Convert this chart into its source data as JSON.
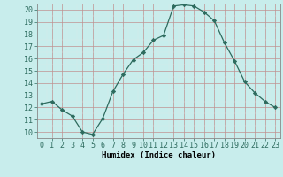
{
  "x": [
    0,
    1,
    2,
    3,
    4,
    5,
    6,
    7,
    8,
    9,
    10,
    11,
    12,
    13,
    14,
    15,
    16,
    17,
    18,
    19,
    20,
    21,
    22,
    23
  ],
  "y": [
    12.3,
    12.5,
    11.8,
    11.3,
    10.0,
    9.8,
    11.1,
    13.3,
    14.7,
    15.9,
    16.5,
    17.5,
    17.9,
    20.3,
    20.4,
    20.3,
    19.8,
    19.1,
    17.3,
    15.8,
    14.1,
    13.2,
    12.5,
    12.0
  ],
  "line_color": "#2d6b5e",
  "marker": "D",
  "marker_size": 2.2,
  "bg_color": "#c8edec",
  "grid_major_color": "#c09090",
  "grid_minor_color": "#d8eaea",
  "xlabel": "Humidex (Indice chaleur)",
  "xlim": [
    -0.5,
    23.5
  ],
  "ylim": [
    9.5,
    20.5
  ],
  "yticks": [
    10,
    11,
    12,
    13,
    14,
    15,
    16,
    17,
    18,
    19,
    20
  ],
  "xtick_labels": [
    "0",
    "1",
    "2",
    "3",
    "4",
    "5",
    "6",
    "7",
    "8",
    "9",
    "10",
    "11",
    "12",
    "13",
    "14",
    "15",
    "16",
    "17",
    "18",
    "19",
    "20",
    "21",
    "22",
    "23"
  ],
  "axis_fontsize": 6.5,
  "tick_fontsize": 6.0
}
